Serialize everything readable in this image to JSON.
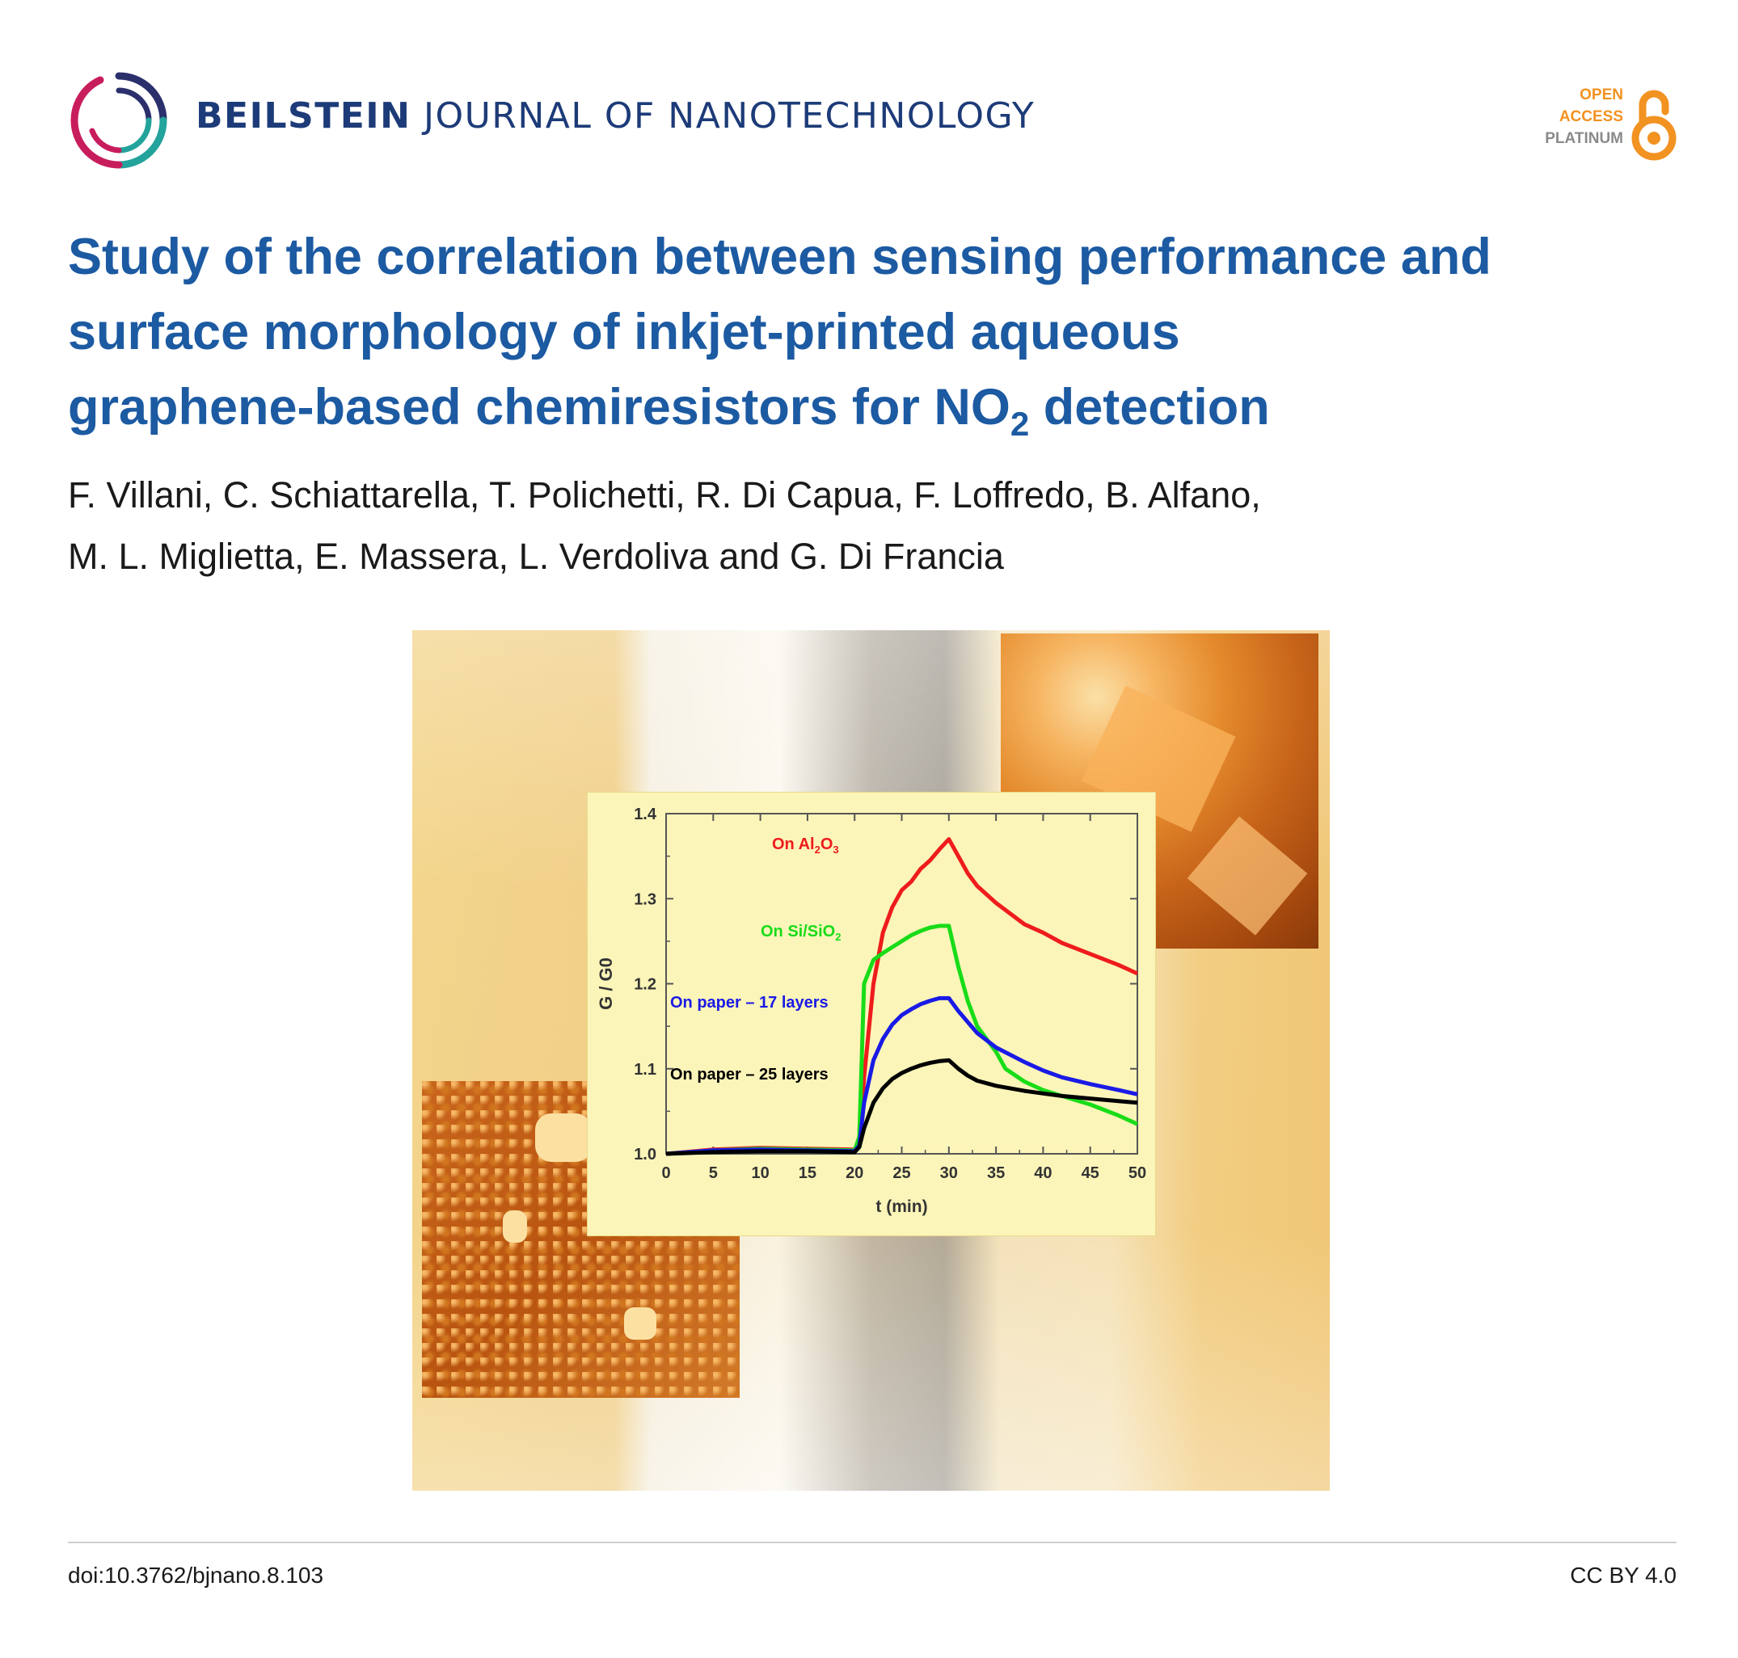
{
  "header": {
    "journal_bold": "BEILSTEIN",
    "journal_rest": "JOURNAL OF NANOTECHNOLOGY",
    "oa_line1": "OPEN",
    "oa_line2": "ACCESS",
    "oa_line3": "PLATINUM",
    "logo_icon": "beilstein-ring-logo",
    "oa_icon": "open-access-lock-icon"
  },
  "article": {
    "title_line1": "Study of the correlation between sensing performance and",
    "title_line2": "surface morphology of inkjet-printed aqueous",
    "title_line3_pre": "graphene-based chemiresistors for NO",
    "title_line3_sub": "2",
    "title_line3_post": " detection",
    "authors_line1": "F. Villani, C. Schiattarella, T. Polichetti, R. Di Capua, F. Loffredo, B. Alfano,",
    "authors_line2": "M. L. Miglietta, E. Massera, L. Verdoliva and G. Di Francia"
  },
  "footer": {
    "doi": "doi:10.3762/bjnano.8.103",
    "license": "CC BY 4.0"
  },
  "colors": {
    "title": "#1c5aa2",
    "journal": "#1d3b78",
    "oa_orange": "#f29221",
    "chart_bg": "#fcf5b9"
  },
  "chart_data": {
    "type": "line",
    "xlabel": "t (min)",
    "ylabel": "G / G0",
    "xlim": [
      0,
      50
    ],
    "ylim": [
      1.0,
      1.4
    ],
    "xticks": [
      "0",
      "5",
      "10",
      "15",
      "20",
      "25",
      "30",
      "35",
      "40",
      "45",
      "50"
    ],
    "yticks": [
      "1.0",
      "1.1",
      "1.2",
      "1.3",
      "1.4"
    ],
    "grid": false,
    "series": [
      {
        "name": "On Al2O3",
        "label_main": "On Al",
        "label_sub1": "2",
        "label_mid": "O",
        "label_sub2": "3",
        "color": "#ee1c1c",
        "x": [
          0,
          5,
          10,
          15,
          20,
          20.5,
          21,
          22,
          23,
          24,
          25,
          26,
          27,
          28,
          29,
          30,
          31,
          32,
          33,
          35,
          38,
          40,
          42,
          45,
          48,
          50
        ],
        "y": [
          1.0,
          1.005,
          1.007,
          1.006,
          1.005,
          1.01,
          1.09,
          1.2,
          1.26,
          1.29,
          1.31,
          1.32,
          1.335,
          1.345,
          1.358,
          1.37,
          1.35,
          1.33,
          1.315,
          1.295,
          1.27,
          1.26,
          1.248,
          1.235,
          1.222,
          1.212
        ]
      },
      {
        "name": "On Si/SiO2",
        "label_main": "On Si/SiO",
        "label_sub1": "2",
        "color": "#18dc18",
        "x": [
          0,
          5,
          10,
          15,
          20,
          20.5,
          21,
          22,
          23,
          24,
          25,
          26,
          27,
          28,
          29,
          30,
          31,
          32,
          33,
          35,
          36,
          38,
          40,
          42,
          45,
          48,
          50
        ],
        "y": [
          1.0,
          1.004,
          1.006,
          1.005,
          1.004,
          1.02,
          1.2,
          1.228,
          1.236,
          1.243,
          1.25,
          1.257,
          1.262,
          1.266,
          1.268,
          1.268,
          1.22,
          1.18,
          1.15,
          1.12,
          1.1,
          1.085,
          1.075,
          1.068,
          1.058,
          1.045,
          1.035
        ]
      },
      {
        "name": "On paper – 17 layers",
        "label_main": "On paper – 17 layers",
        "color": "#1a1ae6",
        "x": [
          0,
          5,
          10,
          15,
          20,
          20.5,
          21,
          22,
          23,
          24,
          25,
          26,
          27,
          28,
          29,
          30,
          31,
          32,
          33,
          35,
          38,
          40,
          42,
          45,
          48,
          50
        ],
        "y": [
          1.0,
          1.004,
          1.005,
          1.004,
          1.003,
          1.01,
          1.06,
          1.11,
          1.135,
          1.152,
          1.163,
          1.17,
          1.176,
          1.18,
          1.183,
          1.183,
          1.168,
          1.155,
          1.142,
          1.125,
          1.108,
          1.098,
          1.09,
          1.082,
          1.075,
          1.07
        ]
      },
      {
        "name": "On paper – 25 layers",
        "label_main": "On paper – 25 layers",
        "color": "#000000",
        "x": [
          0,
          5,
          10,
          15,
          20,
          20.5,
          21,
          22,
          23,
          24,
          25,
          26,
          27,
          28,
          29,
          30,
          31,
          32,
          33,
          35,
          38,
          40,
          42,
          45,
          48,
          50
        ],
        "y": [
          1.0,
          1.002,
          1.003,
          1.003,
          1.002,
          1.008,
          1.03,
          1.06,
          1.077,
          1.088,
          1.095,
          1.1,
          1.104,
          1.107,
          1.109,
          1.11,
          1.1,
          1.092,
          1.086,
          1.08,
          1.074,
          1.071,
          1.068,
          1.065,
          1.062,
          1.06
        ]
      }
    ]
  }
}
